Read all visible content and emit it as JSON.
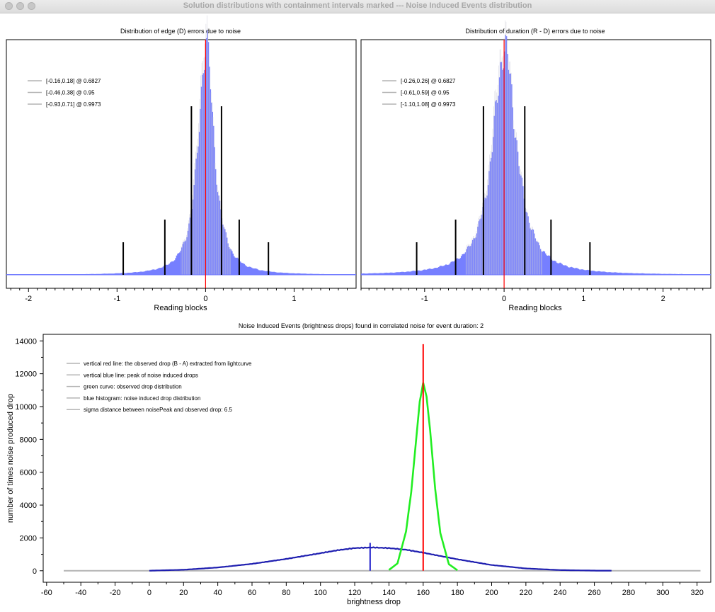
{
  "window": {
    "title": "Solution distributions with containment intervals marked --- Noise Induced Events distribution"
  },
  "colors": {
    "histogram": "#6f78ff",
    "curve_blue": "#1f1fb0",
    "red": "#ff0000",
    "green": "#22ee22",
    "grey": "#b4b4b4",
    "interval": "#000000"
  },
  "charts": {
    "edge": {
      "title": "Distribution of edge (D) errors due to noise",
      "xlabel": "Reading blocks",
      "legend": [
        "[-0.16,0.18] @ 0.6827",
        "[-0.46,0.38] @ 0.95",
        "[-0.93,0.71] @ 0.9973"
      ]
    },
    "duration": {
      "title": "Distribution of duration (R - D) errors due to noise",
      "xlabel": "Reading blocks",
      "legend": [
        "[-0.26,0.26] @ 0.6827",
        "[-0.61,0.59] @ 0.95",
        "[-1.10,1.08] @ 0.9973"
      ]
    },
    "drops": {
      "title": "Noise Induced Events (brightness drops) found in correlated noise for event duration: 2",
      "xlabel": "brightness drop",
      "ylabel": "number of times noise produced drop",
      "legend": [
        "vertical red line: the observed drop (B - A) extracted from lightcurve",
        "vertical blue line: peak of noise induced drops",
        "green curve: observed drop distribution",
        "blue histogram: noise induced drop distribution",
        "sigma distance between noisePeak and observed drop: 6.5"
      ]
    }
  },
  "chart_data": [
    {
      "type": "bar",
      "title": "Distribution of edge (D) errors due to noise",
      "xlabel": "Reading blocks",
      "ylabel": "",
      "xlim": [
        -2.25,
        1.7
      ],
      "xticks": [
        -2,
        -1,
        0,
        1
      ],
      "center": 0,
      "peak_width": 0.13,
      "intervals": [
        {
          "lo": -0.16,
          "hi": 0.18,
          "level": 0.6827
        },
        {
          "lo": -0.46,
          "hi": 0.38,
          "level": 0.95
        },
        {
          "lo": -0.93,
          "hi": 0.71,
          "level": 0.9973
        }
      ],
      "red_line_x": 0,
      "legend_placement": "top-left",
      "grid": false
    },
    {
      "type": "bar",
      "title": "Distribution of duration (R - D) errors due to noise",
      "xlabel": "Reading blocks",
      "ylabel": "",
      "xlim": [
        -1.8,
        2.6
      ],
      "xticks": [
        -1,
        0,
        1,
        2
      ],
      "center": 0,
      "peak_width": 0.22,
      "intervals": [
        {
          "lo": -0.26,
          "hi": 0.26,
          "level": 0.6827
        },
        {
          "lo": -0.61,
          "hi": 0.59,
          "level": 0.95
        },
        {
          "lo": -1.1,
          "hi": 1.08,
          "level": 0.9973
        }
      ],
      "red_line_x": 0,
      "legend_placement": "top-left",
      "grid": false
    },
    {
      "type": "line",
      "title": "Noise Induced Events (brightness drops) found in correlated noise for event duration: 2",
      "xlabel": "brightness drop",
      "ylabel": "number of times noise produced drop",
      "xlim": [
        -62,
        328
      ],
      "ylim": [
        -700,
        14400
      ],
      "xticks": [
        -60,
        -40,
        -20,
        0,
        20,
        40,
        60,
        80,
        100,
        120,
        140,
        160,
        180,
        200,
        220,
        240,
        260,
        280,
        300,
        320
      ],
      "yticks": [
        0,
        2000,
        4000,
        6000,
        8000,
        10000,
        12000,
        14000
      ],
      "series": [
        {
          "kind": "noise histogram",
          "x": [
            -50,
            -20,
            0,
            20,
            40,
            60,
            80,
            100,
            110,
            120,
            130,
            140,
            150,
            160,
            180,
            200,
            220,
            240,
            260,
            280,
            300,
            322
          ],
          "y": [
            0,
            0,
            5,
            60,
            200,
            420,
            720,
            1070,
            1250,
            1380,
            1420,
            1380,
            1280,
            1100,
            700,
            350,
            140,
            40,
            10,
            0,
            0,
            0
          ]
        },
        {
          "kind": "observed drop distribution",
          "x": [
            140,
            145,
            150,
            153,
            156,
            158,
            160,
            162,
            164,
            167,
            170,
            175,
            180
          ],
          "y": [
            50,
            450,
            2400,
            4800,
            8100,
            10300,
            11450,
            10600,
            8600,
            5000,
            2300,
            400,
            30
          ]
        }
      ],
      "observed_drop_x": 160,
      "observed_drop_line_top": 13800,
      "noise_peak_x": 129,
      "noise_peak_line_top": 1700,
      "legend_placement": "top-left",
      "grid": false
    }
  ]
}
